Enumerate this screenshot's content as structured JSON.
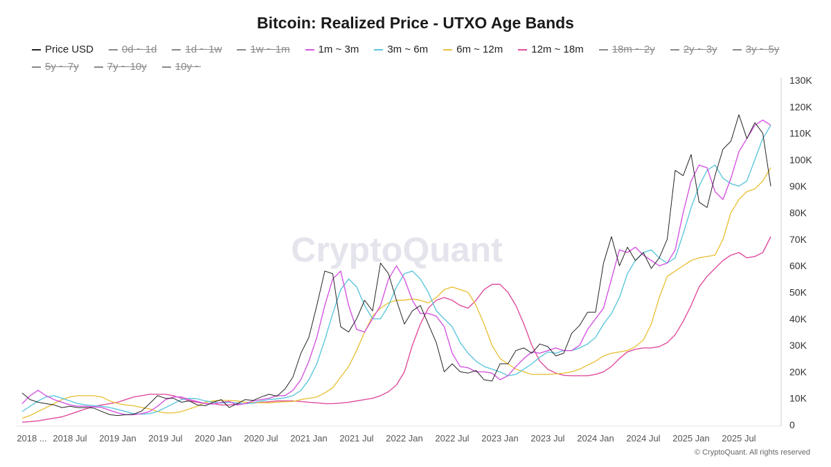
{
  "title": "Bitcoin: Realized Price - UTXO Age Bands",
  "watermark": "CryptoQuant",
  "copyright": "© CryptoQuant. All rights reserved",
  "legend": [
    {
      "label": "Price USD",
      "color": "#222222",
      "visible": true
    },
    {
      "label": "0d ~ 1d",
      "color": "#888888",
      "visible": false
    },
    {
      "label": "1d ~ 1w",
      "color": "#888888",
      "visible": false
    },
    {
      "label": "1w ~ 1m",
      "color": "#888888",
      "visible": false
    },
    {
      "label": "1m ~ 3m",
      "color": "#d455e0",
      "visible": true
    },
    {
      "label": "3m ~ 6m",
      "color": "#5cc6dc",
      "visible": true
    },
    {
      "label": "6m ~ 12m",
      "color": "#e9c23c",
      "visible": true
    },
    {
      "label": "12m ~ 18m",
      "color": "#e04c9c",
      "visible": true
    },
    {
      "label": "18m ~ 2y",
      "color": "#888888",
      "visible": false
    },
    {
      "label": "2y ~ 3y",
      "color": "#888888",
      "visible": false
    },
    {
      "label": "3y ~ 5y",
      "color": "#888888",
      "visible": false
    },
    {
      "label": "5y ~ 7y",
      "color": "#888888",
      "visible": false
    },
    {
      "label": "7y ~ 10y",
      "color": "#888888",
      "visible": false
    },
    {
      "label": "10y ~",
      "color": "#888888",
      "visible": false
    }
  ],
  "chart_data": {
    "type": "line",
    "title": "Bitcoin: Realized Price - UTXO Age Bands",
    "y_axis_side": "right",
    "ylim": [
      0,
      130000
    ],
    "y_ticks": [
      "0",
      "10K",
      "20K",
      "30K",
      "40K",
      "50K",
      "60K",
      "70K",
      "80K",
      "90K",
      "100K",
      "110K",
      "120K",
      "130K"
    ],
    "x_ticks": [
      {
        "label": "2018 ...",
        "date": "2018-01"
      },
      {
        "label": "2018 Jul",
        "date": "2018-07"
      },
      {
        "label": "2019 Jan",
        "date": "2019-01"
      },
      {
        "label": "2019 Jul",
        "date": "2019-07"
      },
      {
        "label": "2020 Jan",
        "date": "2020-01"
      },
      {
        "label": "2020 Jul",
        "date": "2020-07"
      },
      {
        "label": "2021 Jan",
        "date": "2021-01"
      },
      {
        "label": "2021 Jul",
        "date": "2021-07"
      },
      {
        "label": "2022 Jan",
        "date": "2022-01"
      },
      {
        "label": "2022 Jul",
        "date": "2022-07"
      },
      {
        "label": "2023 Jan",
        "date": "2023-01"
      },
      {
        "label": "2023 Jul",
        "date": "2023-07"
      },
      {
        "label": "2024 Jan",
        "date": "2024-01"
      },
      {
        "label": "2024 Jul",
        "date": "2024-07"
      },
      {
        "label": "2025 Jan",
        "date": "2025-01"
      },
      {
        "label": "2025 Jul",
        "date": "2025-07"
      }
    ],
    "grid": false,
    "legend_position": "top",
    "x_start": "2018-01",
    "x_end": "2025-11",
    "x_step": "month",
    "series": [
      {
        "name": "Price USD",
        "color": "#222222",
        "values": [
          12000,
          9500,
          8500,
          8000,
          7500,
          6500,
          7000,
          6500,
          6500,
          6300,
          5000,
          3800,
          3500,
          3800,
          4000,
          5200,
          8000,
          11000,
          10000,
          10000,
          8500,
          9000,
          7500,
          7200,
          8500,
          9500,
          6500,
          8000,
          9500,
          9200,
          10500,
          11500,
          10800,
          13500,
          18000,
          27000,
          33000,
          45000,
          58000,
          57000,
          37000,
          35000,
          40000,
          47000,
          43000,
          61000,
          57000,
          47000,
          38000,
          43000,
          45000,
          38000,
          31000,
          20000,
          23000,
          20000,
          19500,
          20500,
          17000,
          16500,
          23000,
          23000,
          28000,
          29000,
          27000,
          30500,
          29500,
          26000,
          27000,
          34500,
          37500,
          42500,
          42500,
          61000,
          71000,
          60000,
          67000,
          62000,
          65000,
          59000,
          63000,
          70000,
          96000,
          94000,
          102000,
          84000,
          82000,
          94000,
          104000,
          107000,
          117000,
          108000,
          114000,
          110000,
          90000
        ]
      },
      {
        "name": "1m ~ 3m",
        "color": "#d455e0",
        "values": [
          8000,
          11000,
          13000,
          11000,
          9500,
          8500,
          7500,
          7000,
          7000,
          6800,
          6500,
          5500,
          4500,
          3800,
          3800,
          4200,
          5000,
          7000,
          9500,
          10500,
          10500,
          9500,
          8800,
          8000,
          7800,
          8500,
          8800,
          7500,
          8000,
          9000,
          9500,
          10000,
          11000,
          11000,
          13000,
          17000,
          24000,
          33000,
          45000,
          55000,
          58000,
          45000,
          36000,
          35000,
          40000,
          45000,
          55000,
          60000,
          55000,
          47000,
          42000,
          42000,
          41000,
          37000,
          27000,
          22000,
          21500,
          20000,
          20000,
          19500,
          17000,
          18500,
          22000,
          25000,
          27500,
          27000,
          28000,
          29000,
          28000,
          28000,
          30000,
          36000,
          40000,
          44000,
          55000,
          66000,
          65000,
          67000,
          64000,
          62000,
          60000,
          61000,
          66000,
          80000,
          92000,
          98000,
          97000,
          88000,
          85000,
          93000,
          103000,
          108000,
          113000,
          115000,
          113000
        ]
      },
      {
        "name": "3m ~ 6m",
        "color": "#5cc6dc",
        "values": [
          5000,
          7000,
          9000,
          10500,
          11000,
          10000,
          9000,
          8000,
          7500,
          7200,
          7000,
          6500,
          5800,
          5000,
          4200,
          4000,
          4200,
          5000,
          6500,
          8000,
          9500,
          10000,
          9800,
          9000,
          8500,
          8200,
          8500,
          8200,
          8000,
          8200,
          9000,
          9500,
          9800,
          10200,
          11000,
          13000,
          17000,
          23000,
          32000,
          42000,
          51000,
          55000,
          52000,
          45000,
          40000,
          40000,
          45000,
          52000,
          57000,
          58000,
          55000,
          50000,
          43000,
          40000,
          37000,
          31000,
          27000,
          24000,
          22000,
          21000,
          20000,
          18500,
          19000,
          21000,
          23000,
          25500,
          27500,
          27000,
          28000,
          28000,
          29000,
          30500,
          33000,
          38000,
          42000,
          48000,
          57000,
          62000,
          65000,
          66000,
          63000,
          61000,
          63000,
          72000,
          82000,
          90000,
          96000,
          98000,
          93000,
          91000,
          90000,
          92000,
          100000,
          108000,
          113000
        ]
      },
      {
        "name": "6m ~ 12m",
        "color": "#e9c23c",
        "values": [
          2500,
          3500,
          5000,
          6500,
          8000,
          9500,
          10500,
          11000,
          11000,
          11000,
          10500,
          9000,
          8000,
          7500,
          7200,
          6500,
          6000,
          5000,
          4500,
          4500,
          5000,
          6000,
          7000,
          8500,
          9000,
          9300,
          9200,
          9000,
          8500,
          8500,
          8300,
          8300,
          8500,
          8700,
          8800,
          9500,
          10000,
          10500,
          12000,
          14000,
          18000,
          22000,
          28000,
          35000,
          41000,
          44000,
          46000,
          47000,
          47000,
          47500,
          47000,
          46000,
          48000,
          51000,
          52000,
          51000,
          50000,
          45000,
          38000,
          30000,
          25000,
          23000,
          21000,
          20000,
          19000,
          19000,
          19000,
          19200,
          19500,
          20000,
          21000,
          22500,
          24000,
          26000,
          27000,
          27500,
          28000,
          29500,
          32000,
          38000,
          48000,
          56000,
          58000,
          60000,
          62000,
          63000,
          63500,
          64000,
          70000,
          80000,
          85000,
          88000,
          89000,
          92000,
          97000
        ]
      },
      {
        "name": "12m ~ 18m",
        "color": "#e04c9c",
        "values": [
          1000,
          1200,
          1500,
          2000,
          2500,
          3000,
          4000,
          5000,
          6000,
          7000,
          7500,
          8000,
          8500,
          9500,
          10500,
          11000,
          11500,
          11500,
          11500,
          11000,
          10000,
          9000,
          8500,
          8000,
          8000,
          7500,
          7500,
          7800,
          8000,
          8200,
          8500,
          8700,
          9000,
          9000,
          9000,
          8800,
          8500,
          8300,
          8000,
          8000,
          8200,
          8500,
          9000,
          9500,
          10000,
          11000,
          12500,
          15000,
          20000,
          30000,
          38000,
          44000,
          47000,
          48000,
          47000,
          45000,
          44000,
          47000,
          51000,
          53000,
          53000,
          50000,
          45000,
          38000,
          30000,
          24000,
          21000,
          19500,
          18700,
          18500,
          18500,
          18500,
          19000,
          20000,
          22000,
          25000,
          27500,
          28500,
          29000,
          29000,
          29500,
          31000,
          34000,
          39000,
          45000,
          52000,
          56000,
          59000,
          62000,
          64000,
          65000,
          63000,
          63500,
          65000,
          71000
        ]
      }
    ]
  }
}
